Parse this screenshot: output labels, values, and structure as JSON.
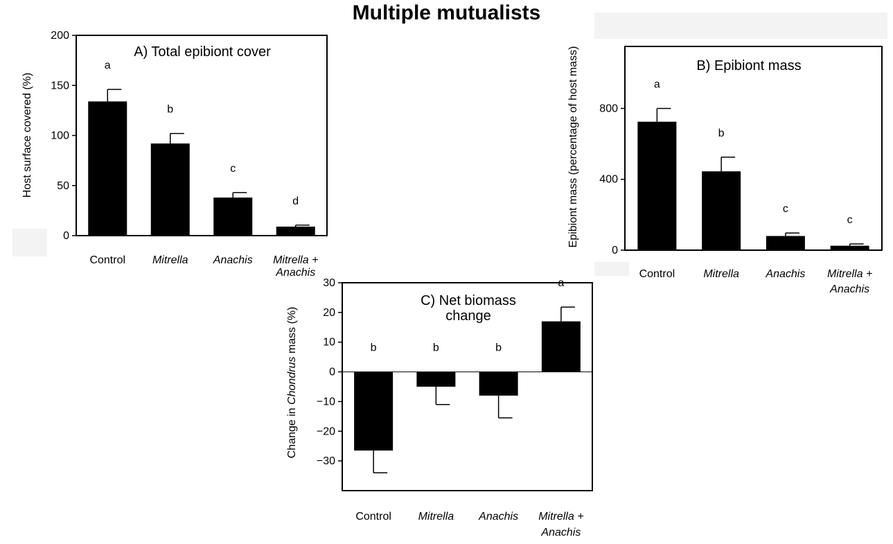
{
  "page": {
    "title": "Multiple mutualists"
  },
  "chart_data": [
    {
      "id": "A",
      "type": "bar",
      "title": "A) Total epibiont cover",
      "ylabel": "Host surface covered (%)",
      "ylim": [
        0,
        200
      ],
      "yticks": [
        0,
        50,
        100,
        150,
        200
      ],
      "categories": [
        "Control",
        "Mitrella",
        "Anachis",
        "Mitrella + Anachis"
      ],
      "italic_categories": [
        false,
        true,
        true,
        true
      ],
      "values": [
        134,
        92,
        38,
        9
      ],
      "errors": [
        12,
        10,
        5,
        1.5
      ],
      "letters": [
        "a",
        "b",
        "c",
        "d"
      ],
      "grid": false
    },
    {
      "id": "B",
      "type": "bar",
      "title": "B) Epibiont mass",
      "ylabel": "Epibiont mass (percentage of host mass)",
      "ylim": [
        0,
        1150
      ],
      "yticks": [
        0,
        400,
        800
      ],
      "categories": [
        "Control",
        "Mitrella",
        "Anachis",
        "Mitrella + Anachis"
      ],
      "italic_categories": [
        false,
        true,
        true,
        true
      ],
      "values": [
        725,
        445,
        80,
        25
      ],
      "errors": [
        75,
        80,
        17,
        10
      ],
      "letters": [
        "a",
        "b",
        "c",
        "c"
      ],
      "grid": false
    },
    {
      "id": "C",
      "type": "bar",
      "title": "C) Net biomass change",
      "ylabel_parts": [
        "Change in ",
        "Chondrus",
        " mass (%)"
      ],
      "ylim": [
        -40,
        30
      ],
      "yticks": [
        -30,
        -20,
        -10,
        0,
        10,
        20,
        30
      ],
      "categories": [
        "Control",
        "Mitrella",
        "Anachis",
        "Mitrella + Anachis"
      ],
      "italic_categories": [
        false,
        true,
        true,
        true
      ],
      "values": [
        -26.5,
        -5,
        -8,
        17
      ],
      "errors": [
        7.5,
        6,
        7.5,
        4.8
      ],
      "letters": [
        "b",
        "b",
        "b",
        "a"
      ],
      "grid": false
    }
  ]
}
